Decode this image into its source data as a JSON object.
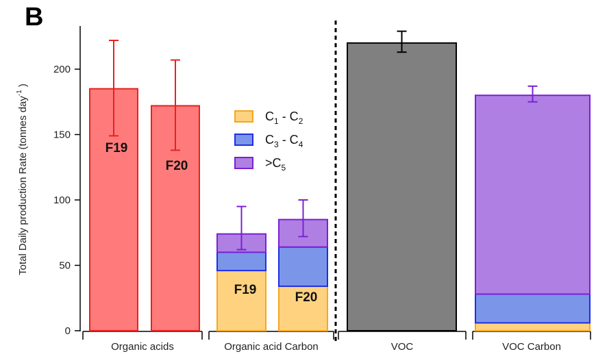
{
  "panel_label": "B",
  "chart_data": {
    "type": "bar",
    "ylabel_main": "Total Daily production Rate (tonnes day",
    "ylabel_sup": "-1",
    "ylabel_close": ")",
    "ylim": [
      0,
      230
    ],
    "yticks": [
      0,
      50,
      100,
      150,
      200
    ],
    "grid": false,
    "groups": [
      {
        "label": "Organic acids"
      },
      {
        "label": "Organic acid Carbon"
      },
      {
        "label": "VOC"
      },
      {
        "label": "VOC Carbon"
      }
    ],
    "bars": [
      {
        "group": 0,
        "label": "F19",
        "value": 185,
        "err_low": 149,
        "err_high": 222,
        "fill": "#ff7b7b",
        "stroke": "#e8211f",
        "err_color": "#e8211f"
      },
      {
        "group": 0,
        "label": "F20",
        "value": 172,
        "err_low": 138,
        "err_high": 207,
        "fill": "#ff7b7b",
        "stroke": "#e8211f",
        "err_color": "#e8211f"
      },
      {
        "group": 1,
        "label": "F19",
        "segments": [
          46,
          14,
          14
        ],
        "total": 74,
        "err_low": 62,
        "err_high": 95,
        "err_color": "#7a20d6"
      },
      {
        "group": 1,
        "label": "F20",
        "segments": [
          34,
          30,
          21
        ],
        "total": 85,
        "err_low": 72,
        "err_high": 100,
        "err_color": "#7a20d6"
      },
      {
        "group": 2,
        "label": "",
        "value": 220,
        "err_low": 213,
        "err_high": 229,
        "fill": "#808080",
        "stroke": "#000000",
        "err_color": "#000000"
      },
      {
        "group": 3,
        "label": "",
        "segments": [
          6,
          22,
          152
        ],
        "total": 180,
        "err_low": 175,
        "err_high": 187,
        "err_color": "#7a20d6"
      }
    ],
    "legend": {
      "placement": "center",
      "entries": [
        {
          "base": "C",
          "sub1": "1",
          "mid": " - C",
          "sub2": "2"
        },
        {
          "base": "C",
          "sub1": "3",
          "mid": " - C",
          "sub2": "4"
        },
        {
          "base": ">C",
          "sub1": "5",
          "mid": "",
          "sub2": ""
        }
      ]
    },
    "segment_colors": [
      {
        "fill": "#ffd27f",
        "stroke": "#f5a623"
      },
      {
        "fill": "#7b96e8",
        "stroke": "#1f2de8"
      },
      {
        "fill": "#b07fe3",
        "stroke": "#7a20d6"
      }
    ],
    "divider_after_group": 1
  }
}
